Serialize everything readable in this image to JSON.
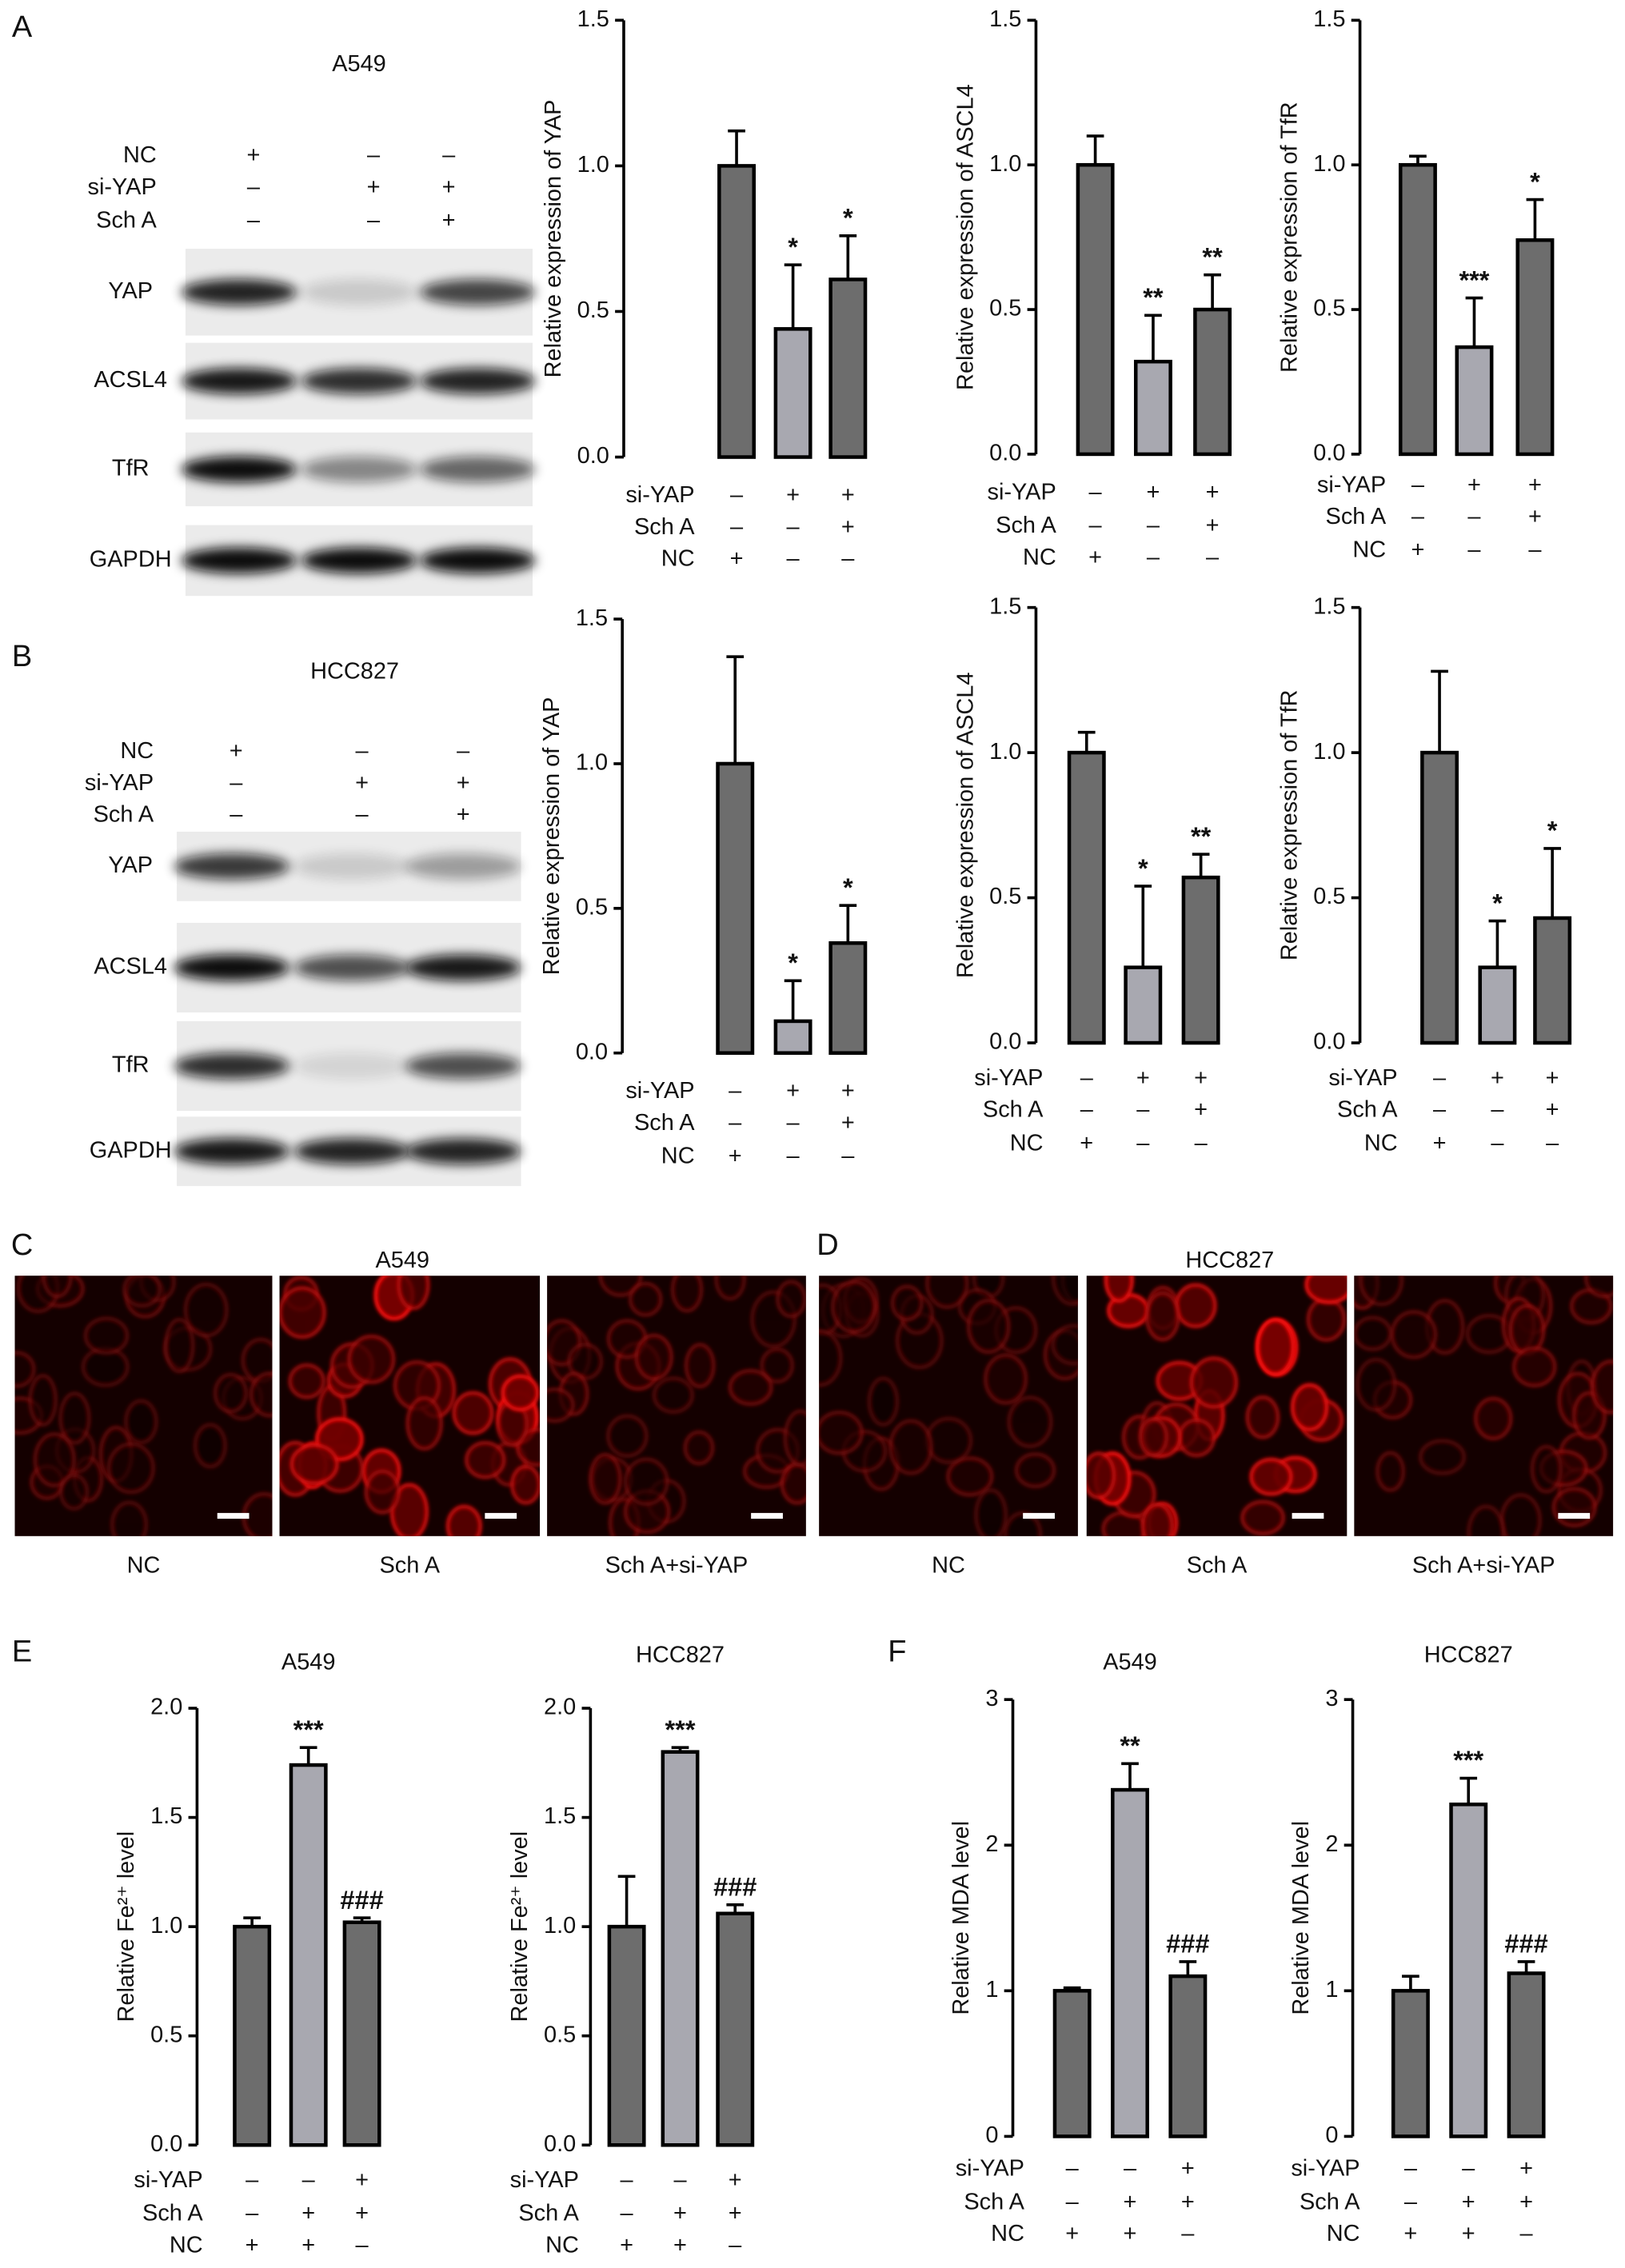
{
  "panel_labels": [
    "A",
    "B",
    "C",
    "D",
    "E",
    "F"
  ],
  "blots": [
    {
      "cell_line": "A549",
      "conditions": {
        "rows": [
          "NC",
          "si-YAP",
          "Sch A"
        ],
        "signs": [
          [
            "+",
            "–",
            "–"
          ],
          [
            "–",
            "+",
            "+"
          ],
          [
            "–",
            "–",
            "+"
          ]
        ]
      },
      "proteins": [
        "YAP",
        "ACSL4",
        "TfR",
        "GAPDH"
      ]
    },
    {
      "cell_line": "HCC827",
      "conditions": {
        "rows": [
          "NC",
          "si-YAP",
          "Sch A"
        ],
        "signs": [
          [
            "+",
            "–",
            "–"
          ],
          [
            "–",
            "+",
            "+"
          ],
          [
            "–",
            "–",
            "+"
          ]
        ]
      },
      "proteins": [
        "YAP",
        "ACSL4",
        "TfR",
        "GAPDH"
      ]
    }
  ],
  "microscopy": [
    {
      "cell_line": "A549",
      "labels": [
        "NC",
        "Sch A",
        "Sch A+si-YAP"
      ]
    },
    {
      "cell_line": "HCC827",
      "labels": [
        "NC",
        "Sch A",
        "Sch A+si-YAP"
      ]
    }
  ],
  "chart_data": [
    {
      "type": "bar",
      "ylabel": "Relative expression of YAP",
      "ylim": [
        0,
        1.5
      ],
      "yticks": [
        {
          "value": 0,
          "label": "0.0"
        },
        {
          "value": 0.5,
          "label": "0.5"
        },
        {
          "value": 1,
          "label": "1.0"
        },
        {
          "value": 1.5,
          "label": "1.5"
        }
      ],
      "values": [
        1.0,
        0.44,
        0.61
      ],
      "errors": [
        0.12,
        0.22,
        0.15
      ],
      "annotations": [
        null,
        "*",
        "*"
      ],
      "colors": [
        "#6d6d6d",
        "#a8a8b0",
        "#6d6d6d"
      ],
      "conditions": {
        "rows": [
          "si-YAP",
          "Sch A",
          "NC"
        ],
        "signs": [
          [
            "–",
            "+",
            "+"
          ],
          [
            "–",
            "–",
            "+"
          ],
          [
            "+",
            "–",
            "–"
          ]
        ]
      }
    },
    {
      "type": "bar",
      "ylabel": "Relative expression of ASCL4",
      "ylim": [
        0,
        1.5
      ],
      "yticks": [
        {
          "value": 0,
          "label": "0.0"
        },
        {
          "value": 0.5,
          "label": "0.5"
        },
        {
          "value": 1,
          "label": "1.0"
        },
        {
          "value": 1.5,
          "label": "1.5"
        }
      ],
      "values": [
        1.0,
        0.32,
        0.5
      ],
      "errors": [
        0.1,
        0.16,
        0.12
      ],
      "annotations": [
        null,
        "**",
        "**"
      ],
      "colors": [
        "#6d6d6d",
        "#a8a8b0",
        "#6d6d6d"
      ],
      "conditions": {
        "rows": [
          "si-YAP",
          "Sch A",
          "NC"
        ],
        "signs": [
          [
            "–",
            "+",
            "+"
          ],
          [
            "–",
            "–",
            "+"
          ],
          [
            "+",
            "–",
            "–"
          ]
        ]
      }
    },
    {
      "type": "bar",
      "ylabel": "Relative expression of TfR",
      "ylim": [
        0,
        1.5
      ],
      "yticks": [
        {
          "value": 0,
          "label": "0.0"
        },
        {
          "value": 0.5,
          "label": "0.5"
        },
        {
          "value": 1,
          "label": "1.0"
        },
        {
          "value": 1.5,
          "label": "1.5"
        }
      ],
      "values": [
        1.0,
        0.37,
        0.74
      ],
      "errors": [
        0.03,
        0.17,
        0.14
      ],
      "annotations": [
        null,
        "***",
        "*"
      ],
      "colors": [
        "#6d6d6d",
        "#a8a8b0",
        "#6d6d6d"
      ],
      "conditions": {
        "rows": [
          "si-YAP",
          "Sch A",
          "NC"
        ],
        "signs": [
          [
            "–",
            "+",
            "+"
          ],
          [
            "–",
            "–",
            "+"
          ],
          [
            "+",
            "–",
            "–"
          ]
        ]
      }
    },
    {
      "type": "bar",
      "ylabel": "Relative expression of YAP",
      "ylim": [
        0,
        1.5
      ],
      "yticks": [
        {
          "value": 0,
          "label": "0.0"
        },
        {
          "value": 0.5,
          "label": "0.5"
        },
        {
          "value": 1,
          "label": "1.0"
        },
        {
          "value": 1.5,
          "label": "1.5"
        }
      ],
      "values": [
        1.0,
        0.11,
        0.38
      ],
      "errors": [
        0.37,
        0.14,
        0.13
      ],
      "annotations": [
        null,
        "*",
        "*"
      ],
      "colors": [
        "#6d6d6d",
        "#a8a8b0",
        "#6d6d6d"
      ],
      "conditions": {
        "rows": [
          "si-YAP",
          "Sch A",
          "NC"
        ],
        "signs": [
          [
            "–",
            "+",
            "+"
          ],
          [
            "–",
            "–",
            "+"
          ],
          [
            "+",
            "–",
            "–"
          ]
        ]
      }
    },
    {
      "type": "bar",
      "ylabel": "Relative expression of ASCL4",
      "ylim": [
        0,
        1.5
      ],
      "yticks": [
        {
          "value": 0,
          "label": "0.0"
        },
        {
          "value": 0.5,
          "label": "0.5"
        },
        {
          "value": 1,
          "label": "1.0"
        },
        {
          "value": 1.5,
          "label": "1.5"
        }
      ],
      "values": [
        1.0,
        0.26,
        0.57
      ],
      "errors": [
        0.07,
        0.28,
        0.08
      ],
      "annotations": [
        null,
        "*",
        "**"
      ],
      "colors": [
        "#6d6d6d",
        "#a8a8b0",
        "#6d6d6d"
      ],
      "conditions": {
        "rows": [
          "si-YAP",
          "Sch A",
          "NC"
        ],
        "signs": [
          [
            "–",
            "+",
            "+"
          ],
          [
            "–",
            "–",
            "+"
          ],
          [
            "+",
            "–",
            "–"
          ]
        ]
      }
    },
    {
      "type": "bar",
      "ylabel": "Relative expression of TfR",
      "ylim": [
        0,
        1.5
      ],
      "yticks": [
        {
          "value": 0,
          "label": "0.0"
        },
        {
          "value": 0.5,
          "label": "0.5"
        },
        {
          "value": 1,
          "label": "1.0"
        },
        {
          "value": 1.5,
          "label": "1.5"
        }
      ],
      "values": [
        1.0,
        0.26,
        0.43
      ],
      "errors": [
        0.28,
        0.16,
        0.24
      ],
      "annotations": [
        null,
        "*",
        "*"
      ],
      "colors": [
        "#6d6d6d",
        "#a8a8b0",
        "#6d6d6d"
      ],
      "conditions": {
        "rows": [
          "si-YAP",
          "Sch A",
          "NC"
        ],
        "signs": [
          [
            "–",
            "+",
            "+"
          ],
          [
            "–",
            "–",
            "+"
          ],
          [
            "+",
            "–",
            "–"
          ]
        ]
      }
    },
    {
      "type": "bar",
      "title": "A549",
      "ylabel": "Relative Fe²⁺ level",
      "ylim": [
        0,
        2
      ],
      "yticks": [
        {
          "value": 0,
          "label": "0.0"
        },
        {
          "value": 0.5,
          "label": "0.5"
        },
        {
          "value": 1,
          "label": "1.0"
        },
        {
          "value": 1.5,
          "label": "1.5"
        },
        {
          "value": 2,
          "label": "2.0"
        }
      ],
      "values": [
        1.0,
        1.74,
        1.02
      ],
      "errors": [
        0.04,
        0.08,
        0.02
      ],
      "annotations": [
        null,
        "***",
        "###"
      ],
      "colors": [
        "#6d6d6d",
        "#a8a8b0",
        "#6d6d6d"
      ],
      "conditions": {
        "rows": [
          "si-YAP",
          "Sch A",
          "NC"
        ],
        "signs": [
          [
            "–",
            "–",
            "+"
          ],
          [
            "–",
            "+",
            "+"
          ],
          [
            "+",
            "+",
            "–"
          ]
        ]
      }
    },
    {
      "type": "bar",
      "title": "HCC827",
      "ylabel": "Relative Fe²⁺ level",
      "ylim": [
        0,
        2
      ],
      "yticks": [
        {
          "value": 0,
          "label": "0.0"
        },
        {
          "value": 0.5,
          "label": "0.5"
        },
        {
          "value": 1,
          "label": "1.0"
        },
        {
          "value": 1.5,
          "label": "1.5"
        },
        {
          "value": 2,
          "label": "2.0"
        }
      ],
      "values": [
        1.0,
        1.8,
        1.06
      ],
      "errors": [
        0.23,
        0.02,
        0.04
      ],
      "annotations": [
        null,
        "***",
        "###"
      ],
      "colors": [
        "#6d6d6d",
        "#a8a8b0",
        "#6d6d6d"
      ],
      "conditions": {
        "rows": [
          "si-YAP",
          "Sch A",
          "NC"
        ],
        "signs": [
          [
            "–",
            "–",
            "+"
          ],
          [
            "–",
            "+",
            "+"
          ],
          [
            "+",
            "+",
            "–"
          ]
        ]
      }
    },
    {
      "type": "bar",
      "title": "A549",
      "ylabel": "Relative MDA level",
      "ylim": [
        0,
        3
      ],
      "yticks": [
        0,
        1,
        2,
        3
      ],
      "values": [
        1.0,
        2.38,
        1.1
      ],
      "errors": [
        0.02,
        0.18,
        0.1
      ],
      "annotations": [
        null,
        "**",
        "###"
      ],
      "colors": [
        "#6d6d6d",
        "#a8a8b0",
        "#6d6d6d"
      ],
      "conditions": {
        "rows": [
          "si-YAP",
          "Sch A",
          "NC"
        ],
        "signs": [
          [
            "–",
            "–",
            "+"
          ],
          [
            "–",
            "+",
            "+"
          ],
          [
            "+",
            "+",
            "–"
          ]
        ]
      }
    },
    {
      "type": "bar",
      "title": "HCC827",
      "ylabel": "Relative MDA level",
      "ylim": [
        0,
        3
      ],
      "yticks": [
        0,
        1,
        2,
        3
      ],
      "values": [
        1.0,
        2.28,
        1.12
      ],
      "errors": [
        0.1,
        0.18,
        0.08
      ],
      "annotations": [
        null,
        "***",
        "###"
      ],
      "colors": [
        "#6d6d6d",
        "#a8a8b0",
        "#6d6d6d"
      ],
      "conditions": {
        "rows": [
          "si-YAP",
          "Sch A",
          "NC"
        ],
        "signs": [
          [
            "–",
            "–",
            "+"
          ],
          [
            "–",
            "+",
            "+"
          ],
          [
            "+",
            "+",
            "–"
          ]
        ]
      }
    }
  ]
}
